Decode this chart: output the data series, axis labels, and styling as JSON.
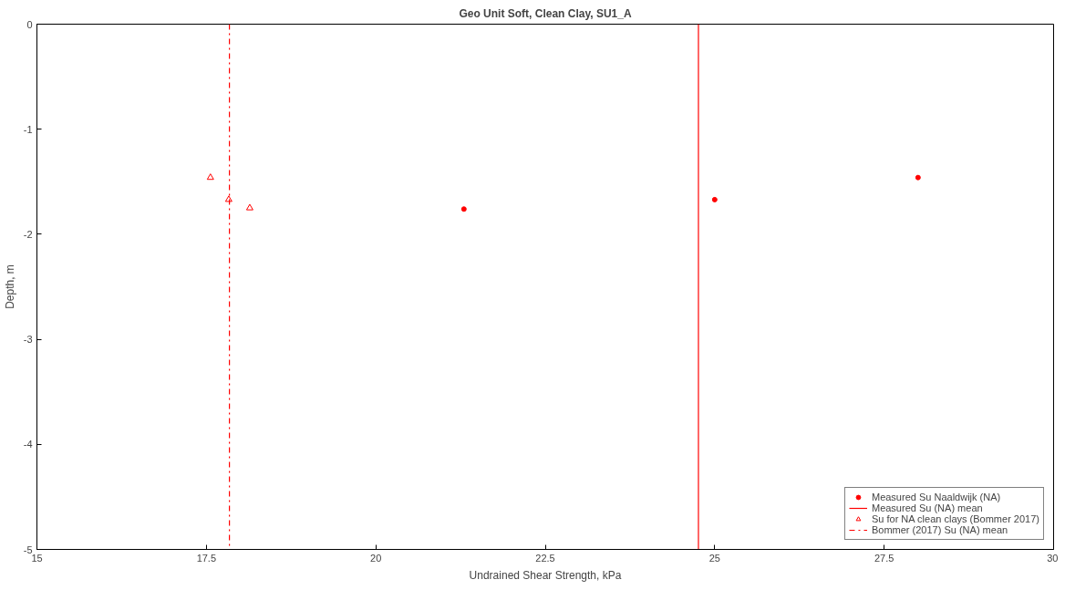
{
  "chart_data": {
    "type": "scatter",
    "title": "Geo Unit Soft, Clean Clay, SU1_A",
    "xlabel": "Undrained Shear Strength, kPa",
    "ylabel": "Depth, m",
    "xlim": [
      15,
      30
    ],
    "xticks": [
      15,
      17.5,
      20,
      22.5,
      25,
      27.5,
      30
    ],
    "ylim": [
      -5,
      0
    ],
    "yticks": [
      -5,
      -4,
      -3,
      -2,
      -1,
      0
    ],
    "grid": false,
    "legend": "bottom right",
    "series": [
      {
        "name": "Measured Su Naaldwijk (NA)",
        "marker": "circle",
        "color": "#ff0000",
        "x": [
          21.3,
          25.0,
          28.0
        ],
        "values": [
          -1.76,
          -1.67,
          -1.46
        ]
      },
      {
        "name": "Measured Su (NA) mean",
        "type": "line",
        "line_style": "solid",
        "color": "#ff0000",
        "x": [
          24.76,
          24.76
        ],
        "values": [
          0,
          -5
        ]
      },
      {
        "name": "Su for NA clean clays (Bommer 2017)",
        "marker": "triangle",
        "color": "#ff0000",
        "x": [
          17.56,
          17.83,
          18.14
        ],
        "values": [
          -1.46,
          -1.67,
          -1.75
        ]
      },
      {
        "name": "Bommer (2017) Su (NA) mean",
        "type": "line",
        "line_style": "dashdot",
        "color": "#ff0000",
        "x": [
          17.84,
          17.84
        ],
        "values": [
          0,
          -5
        ]
      }
    ]
  }
}
